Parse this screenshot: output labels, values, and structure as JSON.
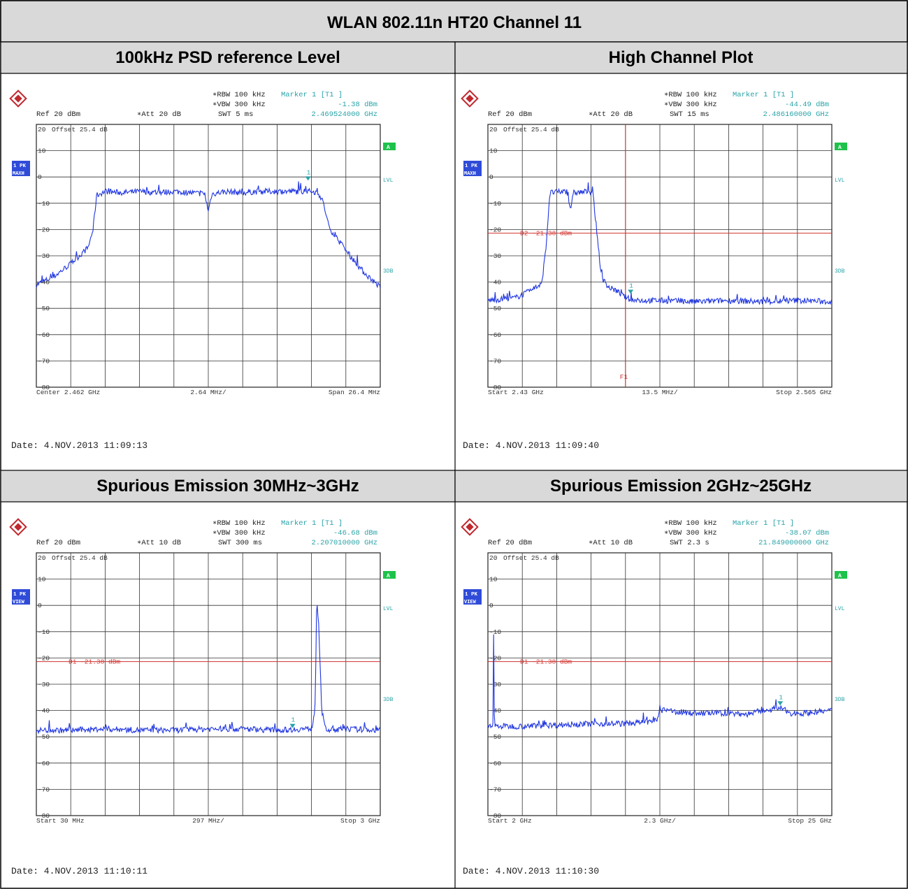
{
  "title": "WLAN 802.11n HT20 Channel 11",
  "chart_data": [
    {
      "type": "line",
      "caption": "100kHz PSD reference Level",
      "ref": "Ref  20 dBm",
      "att": "Att  20 dB",
      "rbw": "RBW 100 kHz",
      "vbw": "VBW 300 kHz",
      "swt": "SWT 5 ms",
      "marker_label": "Marker 1 [T1 ]",
      "marker_value": "-1.38 dBm",
      "marker_freq": "2.469524000 GHz",
      "offset": "Offset  25.4 dB",
      "trace_badge": [
        "1 PK",
        "MAXH"
      ],
      "x_left": "Center 2.462 GHz",
      "x_mid": "2.64 MHz/",
      "x_right": "Span 26.4 MHz",
      "date": "Date: 4.NOV.2013  11:09:13",
      "ylim": [
        -80,
        20
      ],
      "yticks": [
        20,
        10,
        0,
        -10,
        -20,
        -30,
        -40,
        -50,
        -60,
        -70,
        -80
      ],
      "xlim": [
        0,
        10
      ],
      "series": [
        {
          "x": [
            0,
            0.5,
            1.0,
            1.5,
            1.65,
            1.75,
            2.0,
            2.5,
            3.0,
            3.5,
            4.0,
            4.5,
            4.9,
            5.0,
            5.1,
            5.5,
            6.0,
            6.5,
            7.0,
            7.5,
            8.0,
            8.2,
            8.35,
            8.5,
            9.0,
            9.5,
            10.0
          ],
          "y": [
            -41,
            -38,
            -33,
            -27,
            -20,
            -7,
            -5.5,
            -6,
            -5.5,
            -6,
            -5.5,
            -6,
            -6.5,
            -13,
            -6.5,
            -5.5,
            -6,
            -5.5,
            -5.5,
            -5.5,
            -5.5,
            -6,
            -10,
            -19,
            -28,
            -36,
            -42
          ]
        }
      ],
      "marker": {
        "x": 7.9,
        "y": -1.38,
        "label": "1"
      },
      "display_lines": [],
      "side": [
        "A",
        "LVL",
        "3DB"
      ]
    },
    {
      "type": "line",
      "caption": "High Channel Plot",
      "ref": "Ref  20 dBm",
      "att": "Att  20 dB",
      "rbw": "RBW 100 kHz",
      "vbw": "VBW 300 kHz",
      "swt": "SWT 15 ms",
      "marker_label": "Marker 1 [T1 ]",
      "marker_value": "-44.49 dBm",
      "marker_freq": "2.486160000 GHz",
      "offset": "Offset  25.4 dB",
      "trace_badge": [
        "1 PK",
        "MAXH"
      ],
      "x_left": "Start 2.43 GHz",
      "x_mid": "13.5 MHz/",
      "x_right": "Stop 2.565 GHz",
      "date": "Date: 4.NOV.2013  11:09:40",
      "ylim": [
        -80,
        20
      ],
      "yticks": [
        20,
        10,
        0,
        -10,
        -20,
        -30,
        -40,
        -50,
        -60,
        -70,
        -80
      ],
      "xlim": [
        0,
        10
      ],
      "series": [
        {
          "x": [
            0,
            0.8,
            1.3,
            1.5,
            1.6,
            1.7,
            1.8,
            2.3,
            2.4,
            2.5,
            3.0,
            3.05,
            3.2,
            3.3,
            3.5,
            3.7,
            3.9,
            4.2,
            5.0,
            6.0,
            7.0,
            8.0,
            9.0,
            10.0
          ],
          "y": [
            -47,
            -46,
            -43,
            -41,
            -38,
            -25,
            -6,
            -5.5,
            -12,
            -6,
            -5.5,
            -6,
            -25,
            -38,
            -42,
            -43,
            -45,
            -47,
            -47,
            -47.5,
            -47,
            -47.5,
            -47,
            -47.5
          ]
        }
      ],
      "marker": {
        "x": 4.15,
        "y": -44.49,
        "label": "1"
      },
      "display_lines": [
        {
          "y": -21.38,
          "label": "D2  -21.38 dBm"
        }
      ],
      "vline": {
        "x": 4.0,
        "label": "F1"
      },
      "side": [
        "A",
        "LVL",
        "3DB"
      ]
    },
    {
      "type": "line",
      "caption": "Spurious Emission 30MHz~3GHz",
      "ref": "Ref  20 dBm",
      "att": "Att  10 dB",
      "rbw": "RBW 100 kHz",
      "vbw": "VBW 300 kHz",
      "swt": "SWT 300 ms",
      "marker_label": "Marker 1 [T1 ]",
      "marker_value": "-46.68 dBm",
      "marker_freq": "2.207010000 GHz",
      "offset": "Offset  25.4 dB",
      "trace_badge": [
        "1 PK",
        "VIEW"
      ],
      "x_left": "Start 30 MHz",
      "x_mid": "297 MHz/",
      "x_right": "Stop 3 GHz",
      "date": "Date: 4.NOV.2013  11:10:11",
      "ylim": [
        -80,
        20
      ],
      "yticks": [
        20,
        10,
        0,
        -10,
        -20,
        -30,
        -40,
        -50,
        -60,
        -70,
        -80
      ],
      "xlim": [
        0,
        10
      ],
      "series": [
        {
          "x": [
            0,
            1.0,
            2.0,
            3.0,
            4.0,
            5.0,
            6.0,
            7.0,
            7.8,
            8.0,
            8.1,
            8.15,
            8.2,
            8.3,
            8.4,
            8.5,
            9.0,
            10.0
          ],
          "y": [
            -47.5,
            -47.5,
            -47,
            -47.5,
            -47.5,
            -47,
            -47,
            -47.5,
            -47,
            -47,
            -40,
            -3,
            -3.5,
            -40,
            -47,
            -47.5,
            -47,
            -47.5
          ]
        }
      ],
      "marker": {
        "x": 7.45,
        "y": -46.68,
        "label": "1"
      },
      "display_lines": [
        {
          "y": -21.38,
          "label": "D1  -21.38 dBm"
        }
      ],
      "side": [
        "A",
        "LVL",
        "3DB"
      ]
    },
    {
      "type": "line",
      "caption": "Spurious Emission 2GHz~25GHz",
      "ref": "Ref  20 dBm",
      "att": "Att  10 dB",
      "rbw": "RBW 100 kHz",
      "vbw": "VBW 300 kHz",
      "swt": "SWT 2.3 s",
      "marker_label": "Marker 1 [T1 ]",
      "marker_value": "-38.07 dBm",
      "marker_freq": "21.849000000 GHz",
      "offset": "Offset  25.4 dB",
      "trace_badge": [
        "1 PK",
        "VIEW"
      ],
      "x_left": "Start 2 GHz",
      "x_mid": "2.3 GHz/",
      "x_right": "Stop 25 GHz",
      "date": "Date: 4.NOV.2013  11:10:30",
      "ylim": [
        -80,
        20
      ],
      "yticks": [
        20,
        10,
        0,
        -10,
        -20,
        -30,
        -40,
        -50,
        -60,
        -70,
        -80
      ],
      "xlim": [
        0,
        10
      ],
      "series": [
        {
          "x": [
            0,
            0.15,
            0.17,
            0.19,
            0.25,
            1.0,
            2.0,
            3.0,
            4.0,
            4.9,
            5.0,
            5.1,
            6.0,
            7.0,
            7.5,
            8.0,
            8.5,
            8.8,
            9.2,
            10.0
          ],
          "y": [
            -46,
            -46,
            -5,
            -46,
            -46,
            -46,
            -45.5,
            -45,
            -45,
            -44,
            -40,
            -40,
            -41,
            -41,
            -41.5,
            -40,
            -39,
            -41,
            -41,
            -40
          ]
        }
      ],
      "marker": {
        "x": 8.5,
        "y": -38.07,
        "label": "1"
      },
      "display_lines": [
        {
          "y": -21.38,
          "label": "D1  -21.38 dBm"
        }
      ],
      "side": [
        "A",
        "LVL",
        "3DB"
      ]
    }
  ]
}
